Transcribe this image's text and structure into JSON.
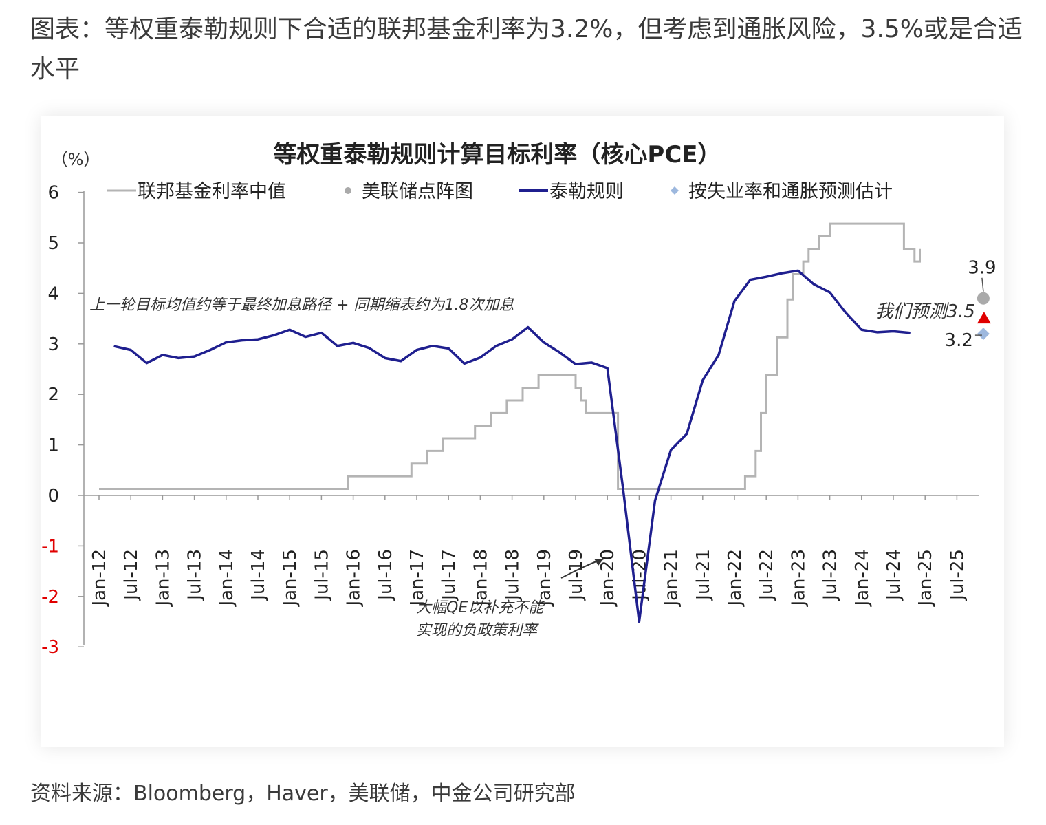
{
  "article": {
    "caption": "图表：等权重泰勒规则下合适的联邦基金利率为3.2%，但考虑到通胀风险，3.5%或是合适水平",
    "source": "资料来源：Bloomberg，Haver，美联储，中金公司研究部"
  },
  "colors": {
    "taylor": "#1f1f8f",
    "fed_funds": "#b4b4b4",
    "dot_plot": "#aaaaaa",
    "estimate": "#9db8de",
    "forecast_marker": "#e00000",
    "negative_tick": "#e00000",
    "axis": "#999999"
  },
  "chart_data": {
    "type": "line",
    "title": "等权重泰勒规则计算目标利率（核心PCE）",
    "ylabel": "（%）",
    "ylim": [
      -3,
      6
    ],
    "yticks": [
      6,
      5,
      4,
      3,
      2,
      1,
      0,
      -1,
      -2,
      -3
    ],
    "xlim": [
      "2012-01",
      "2025-12"
    ],
    "xticks": [
      "Jan-12",
      "Jul-12",
      "Jan-13",
      "Jul-13",
      "Jan-14",
      "Jul-14",
      "Jan-15",
      "Jul-15",
      "Jan-16",
      "Jul-16",
      "Jan-17",
      "Jul-17",
      "Jan-18",
      "Jul-18",
      "Jan-19",
      "Jul-19",
      "Jan-20",
      "Jul-20",
      "Jan-21",
      "Jul-21",
      "Jan-22",
      "Jul-22",
      "Jan-23",
      "Jul-23",
      "Jan-24",
      "Jul-24",
      "Jan-25",
      "Jul-25"
    ],
    "grid": false,
    "legend": {
      "position": "top",
      "entries": [
        {
          "label": "联邦基金利率中值",
          "symbol": "line",
          "color": "#b4b4b4"
        },
        {
          "label": "美联储点阵图",
          "symbol": "dot",
          "color": "#aaaaaa"
        },
        {
          "label": "泰勒规则",
          "symbol": "line",
          "color": "#1f1f8f"
        },
        {
          "label": "按失业率和通胀预测估计",
          "symbol": "diamond",
          "color": "#9db8de"
        }
      ]
    },
    "series": [
      {
        "name": "联邦基金利率中值",
        "kind": "step",
        "x": [
          "2012-01",
          "2015-12",
          "2016-12",
          "2017-03",
          "2017-06",
          "2017-12",
          "2018-03",
          "2018-06",
          "2018-09",
          "2018-12",
          "2019-07",
          "2019-08",
          "2019-09",
          "2019-11",
          "2020-03",
          "2020-04",
          "2022-03",
          "2022-05",
          "2022-06",
          "2022-07",
          "2022-09",
          "2022-11",
          "2022-12",
          "2023-02",
          "2023-03",
          "2023-05",
          "2023-07",
          "2024-09",
          "2024-11",
          "2024-12"
        ],
        "values": [
          0.13,
          0.38,
          0.63,
          0.88,
          1.13,
          1.38,
          1.63,
          1.88,
          2.13,
          2.38,
          2.13,
          1.88,
          1.63,
          1.63,
          0.13,
          0.13,
          0.38,
          0.88,
          1.63,
          2.38,
          3.13,
          3.88,
          4.38,
          4.63,
          4.88,
          5.13,
          5.38,
          4.88,
          4.63,
          4.88
        ]
      },
      {
        "name": "泰勒规则",
        "kind": "line",
        "x": [
          "2012-04",
          "2012-07",
          "2012-10",
          "2013-01",
          "2013-04",
          "2013-07",
          "2013-10",
          "2014-01",
          "2014-04",
          "2014-07",
          "2014-10",
          "2015-01",
          "2015-04",
          "2015-07",
          "2015-10",
          "2016-01",
          "2016-04",
          "2016-07",
          "2016-10",
          "2017-01",
          "2017-04",
          "2017-07",
          "2017-10",
          "2018-01",
          "2018-04",
          "2018-07",
          "2018-10",
          "2019-01",
          "2019-04",
          "2019-07",
          "2019-10",
          "2020-01",
          "2020-04",
          "2020-07",
          "2020-10",
          "2021-01",
          "2021-04",
          "2021-07",
          "2021-10",
          "2022-01",
          "2022-04",
          "2022-07",
          "2022-10",
          "2023-01",
          "2023-04",
          "2023-07",
          "2023-10",
          "2024-01",
          "2024-04",
          "2024-07",
          "2024-10"
        ],
        "values": [
          2.95,
          2.88,
          2.62,
          2.78,
          2.72,
          2.75,
          2.88,
          3.03,
          3.07,
          3.09,
          3.17,
          3.28,
          3.14,
          3.22,
          2.96,
          3.02,
          2.92,
          2.72,
          2.66,
          2.88,
          2.96,
          2.91,
          2.61,
          2.73,
          2.96,
          3.09,
          3.33,
          3.03,
          2.83,
          2.6,
          2.63,
          2.52,
          0.1,
          -2.5,
          -0.1,
          0.9,
          1.22,
          2.28,
          2.78,
          3.85,
          4.27,
          4.33,
          4.4,
          4.45,
          4.18,
          4.02,
          3.62,
          3.28,
          3.23,
          3.25,
          3.22
        ]
      }
    ],
    "points": [
      {
        "name": "美联储点阵图",
        "x": "2025-12",
        "value": 3.9,
        "label": "3.9"
      },
      {
        "name": "我们预测",
        "x": "2025-12",
        "value": 3.5,
        "label": "我们预测3.5"
      },
      {
        "name": "按失业率和通胀预测估计",
        "x": "2025-12",
        "value": 3.2,
        "label": "3.2"
      }
    ],
    "annotations": [
      {
        "text": "上一轮目标均值约等于最终加息路径 + 同期缩表约为1.8次加息"
      },
      {
        "text_line1": "大幅QE以补充不能",
        "text_line2": "实现的负政策利率"
      }
    ]
  }
}
